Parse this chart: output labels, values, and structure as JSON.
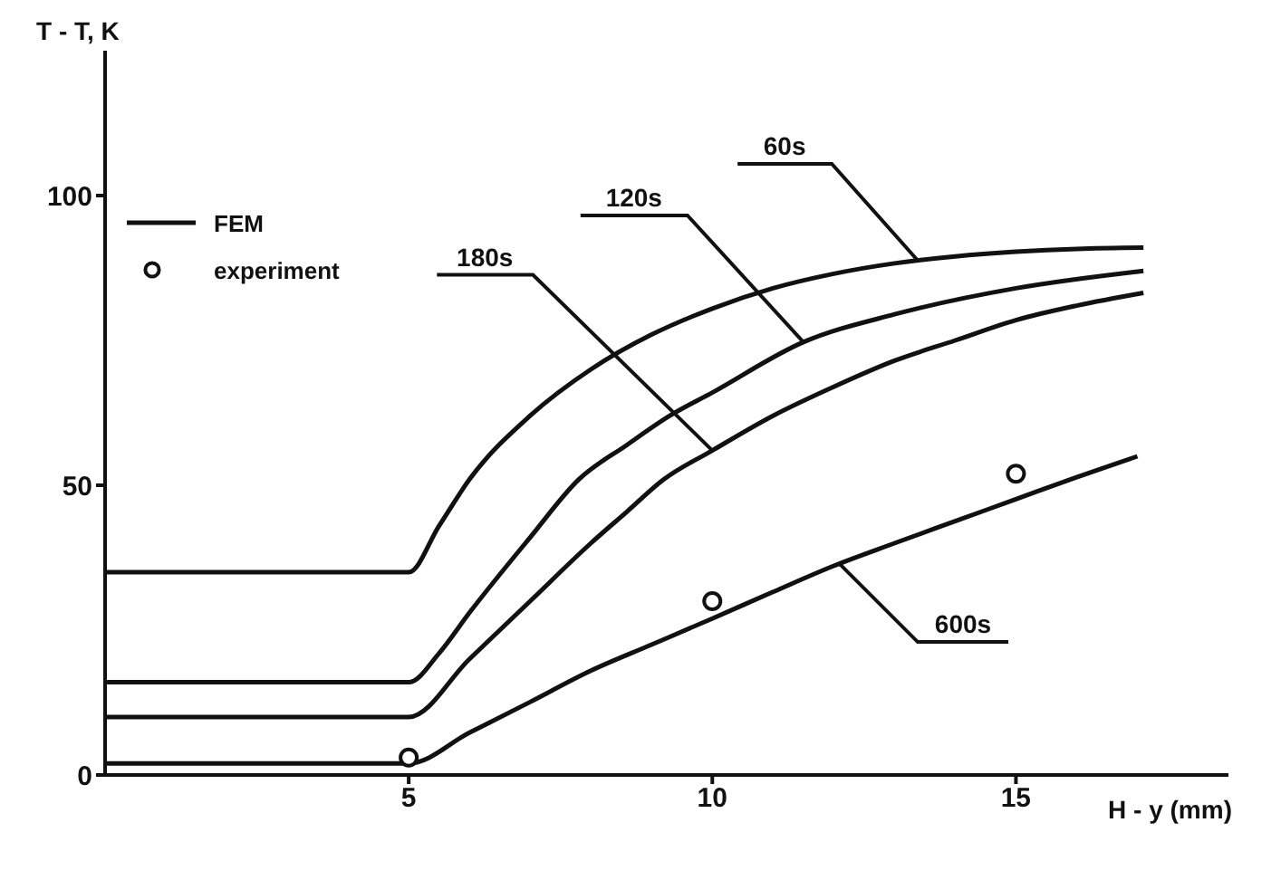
{
  "chart_data": {
    "type": "line",
    "xlabel": "H - y (mm)",
    "ylabel": "T - T, K",
    "xlim": [
      0,
      18.5
    ],
    "xticks": [
      5,
      10,
      15
    ],
    "ylim": [
      0,
      125
    ],
    "yticks": [
      0,
      50,
      100
    ],
    "grid": false,
    "legend": "top left",
    "marker": "none",
    "line_style": "solid",
    "series": [
      {
        "name": "FEM",
        "color": "#111111",
        "x": [
          0,
          5,
          5.5,
          6,
          7,
          8,
          9,
          10,
          11,
          12,
          13,
          14,
          15,
          16,
          17.1
        ],
        "values": [
          35,
          35,
          43,
          51,
          62,
          70,
          76,
          80.5,
          84,
          86.5,
          88.3,
          89.5,
          90.3,
          90.8,
          91
        ]
      },
      {
        "color": "#111111",
        "x": [
          0,
          5,
          5.5,
          6,
          7,
          7.8,
          8.6,
          9.3,
          10,
          11.5,
          13,
          15,
          17.1
        ],
        "values": [
          16,
          16,
          21,
          28,
          41,
          51,
          57,
          62,
          66,
          74.7,
          79.5,
          84,
          87
        ]
      },
      {
        "color": "#111111",
        "x": [
          0,
          5,
          6,
          7,
          8,
          8.6,
          9.2,
          10,
          11,
          12,
          13,
          14,
          15,
          16,
          17.1
        ],
        "values": [
          10,
          10,
          20,
          30,
          40,
          45.5,
          51,
          56,
          62,
          67,
          71.5,
          75,
          78.5,
          81,
          83.2
        ]
      },
      {
        "color": "#111111",
        "x": [
          0,
          5,
          6,
          7,
          8,
          9,
          10,
          11,
          12,
          13,
          14,
          15,
          16,
          17
        ],
        "values": [
          2,
          2,
          7.3,
          12.6,
          18,
          22.5,
          27,
          31.6,
          36.1,
          40,
          43.8,
          47.6,
          51.4,
          55
        ]
      },
      {
        "name": "experiment",
        "type": "scatter",
        "marker": "circle",
        "color": "#111111",
        "x": [
          5,
          10,
          15
        ],
        "values": [
          3,
          30,
          52
        ]
      }
    ],
    "annotations": [
      {
        "text": "60s",
        "x": 13.4,
        "y": 88.6
      },
      {
        "text": "120s",
        "x": 11.5,
        "y": 74.7
      },
      {
        "text": "180s",
        "x": 10,
        "y": 56
      },
      {
        "text": "600s",
        "x": 12.1,
        "y": 36.4
      }
    ]
  }
}
